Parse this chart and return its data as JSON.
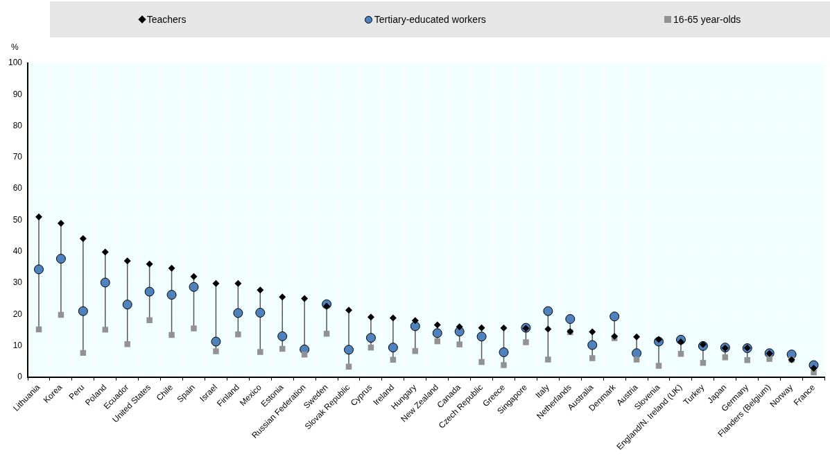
{
  "chart_data": {
    "type": "scatter",
    "ylabel": "%",
    "categories": [
      "Lithuania",
      "Korea",
      "Peru",
      "Poland",
      "Ecuador",
      "United States",
      "Chile",
      "Spain",
      "Israel",
      "Finland",
      "Mexico",
      "Estonia",
      "Russian Federation",
      "Sweden",
      "Slovak Republic",
      "Cyprus",
      "Ireland",
      "Hungary",
      "New Zealand",
      "Canada",
      "Czech Republic",
      "Greece",
      "Singapore",
      "Italy",
      "Netherlands",
      "Australia",
      "Denmark",
      "Austria",
      "Slovenia",
      "England/N. Ireland (UK)",
      "Turkey",
      "Japan",
      "Germany",
      "Flanders (Belgium)",
      "Norway",
      "France"
    ],
    "series": [
      {
        "name": "Teachers",
        "color": "#000000",
        "marker": "diamond",
        "values": [
          51,
          49,
          44.1,
          39.8,
          37,
          36,
          34.7,
          32,
          29.8,
          29.8,
          27.7,
          25.5,
          25,
          22.6,
          21.3,
          19.1,
          18.8,
          18,
          16.6,
          16,
          15.7,
          15.6,
          15.5,
          15.3,
          14.5,
          14.4,
          13,
          12.8,
          12,
          11.2,
          10.4,
          9.2,
          9.3,
          7.5,
          5.5,
          2.8
        ]
      },
      {
        "name": "Tertiary-educated workers",
        "color": "#4f81bd",
        "marker": "circle",
        "values": [
          34.3,
          37.7,
          21,
          30.1,
          23.1,
          27.2,
          26.2,
          28.7,
          11.3,
          20.4,
          20.5,
          13,
          8.8,
          23.2,
          8.7,
          12.5,
          9.4,
          16.2,
          14,
          14.5,
          12.9,
          7.9,
          15.7,
          21,
          18.5,
          10.2,
          19.3,
          7.6,
          11.3,
          11.9,
          9.9,
          9.4,
          9.2,
          7.6,
          7.2,
          3.8
        ]
      },
      {
        "name": "16-65 year-olds",
        "color": "#929292",
        "marker": "square",
        "values": [
          15.2,
          19.8,
          7.7,
          15.1,
          10.5,
          18.1,
          13.4,
          15.5,
          8.2,
          13.6,
          8,
          9,
          7.2,
          13.8,
          3.3,
          9.4,
          5.5,
          8.3,
          11.4,
          10.4,
          4.8,
          3.8,
          11.1,
          5.6,
          14.3,
          6,
          12.4,
          5.6,
          3.6,
          7.4,
          4.5,
          6.3,
          5.4,
          5.8,
          5.6,
          1.5
        ]
      }
    ],
    "ylim": [
      0,
      100
    ],
    "yticks": [
      0,
      10,
      20,
      30,
      40,
      50,
      60,
      70,
      80,
      90,
      100
    ],
    "grid": true,
    "legend": "top"
  }
}
